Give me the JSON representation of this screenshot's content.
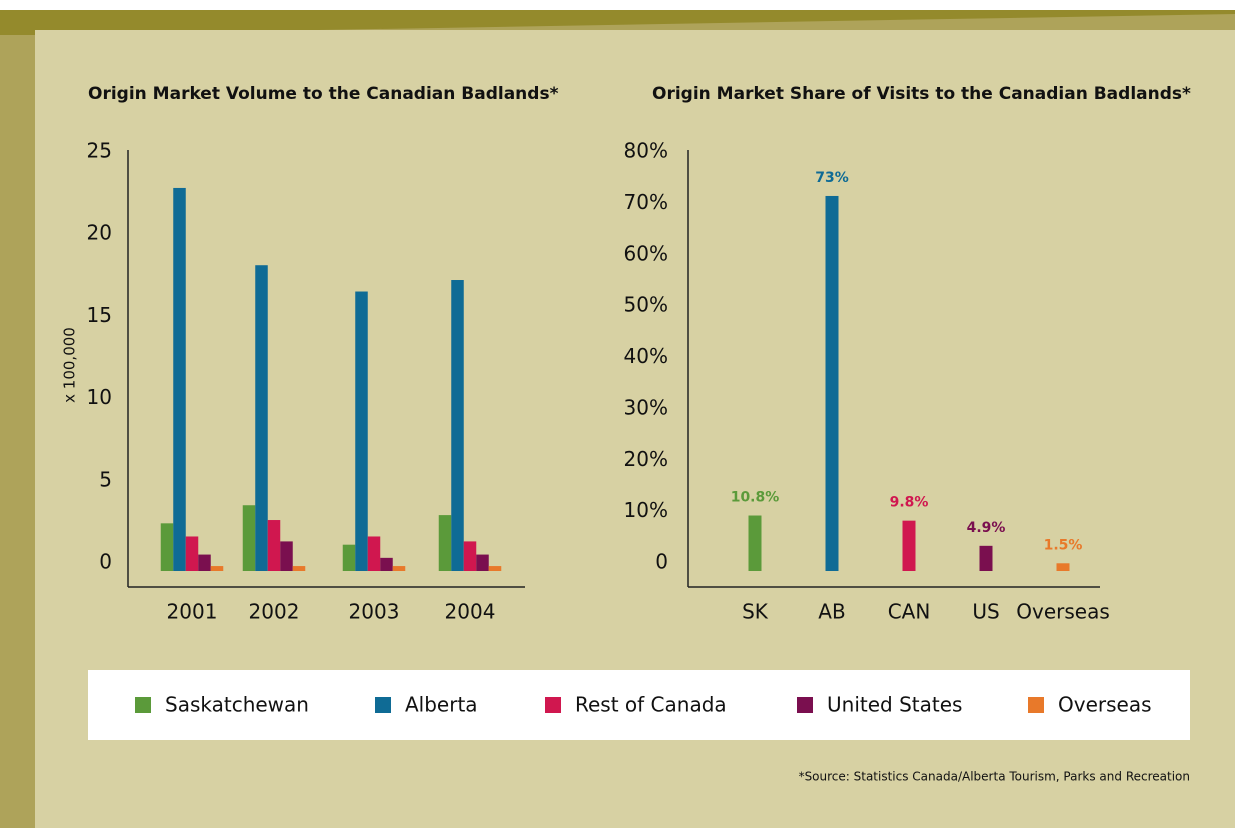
{
  "chart_data": [
    {
      "type": "grouped_bar",
      "title": "Origin Market Volume to the Canadian Badlands*",
      "ylabel": "x 100,000",
      "categories": [
        "2001",
        "2002",
        "2003",
        "2004"
      ],
      "ylim": [
        0,
        25
      ],
      "yticks": [
        0,
        5,
        10,
        15,
        20,
        25
      ],
      "series": [
        {
          "name": "Saskatchewan",
          "color": "#5b9a3a",
          "values": [
            2.9,
            4.0,
            1.6,
            3.4
          ]
        },
        {
          "name": "Alberta",
          "color": "#0f6b95",
          "values": [
            23.3,
            18.6,
            17.0,
            17.7
          ]
        },
        {
          "name": "Rest of Canada",
          "color": "#d0174f",
          "values": [
            2.1,
            3.1,
            2.1,
            1.8
          ]
        },
        {
          "name": "United States",
          "color": "#7a0f4f",
          "values": [
            1.0,
            1.8,
            0.8,
            1.0
          ]
        },
        {
          "name": "Overseas",
          "color": "#e8792a",
          "values": [
            0.3,
            0.3,
            0.3,
            0.3
          ]
        }
      ]
    },
    {
      "type": "bar",
      "title": "Origin Market Share of Visits to the Canadian Badlands*",
      "categories": [
        "SK",
        "AB",
        "CAN",
        "US",
        "Overseas"
      ],
      "values": [
        10.8,
        73,
        9.8,
        4.9,
        1.5
      ],
      "value_labels": [
        "10.8%",
        "73%",
        "9.8%",
        "4.9%",
        "1.5%"
      ],
      "colors": [
        "#5b9a3a",
        "#0f6b95",
        "#d0174f",
        "#7a0f4f",
        "#e8792a"
      ],
      "ylim": [
        0,
        80
      ],
      "yticks": [
        0,
        {
          "value": 10,
          "label": "10%"
        },
        {
          "value": 20,
          "label": "20%"
        },
        {
          "value": 30,
          "label": "30%"
        },
        {
          "value": 40,
          "label": "40%"
        },
        {
          "value": 50,
          "label": "50%"
        },
        {
          "value": 60,
          "label": "60%"
        },
        {
          "value": 70,
          "label": "70%"
        },
        {
          "value": 80,
          "label": "80%"
        }
      ]
    }
  ],
  "footnote": "*Source: Statistics Canada/Alberta Tourism, Parks and Recreation"
}
